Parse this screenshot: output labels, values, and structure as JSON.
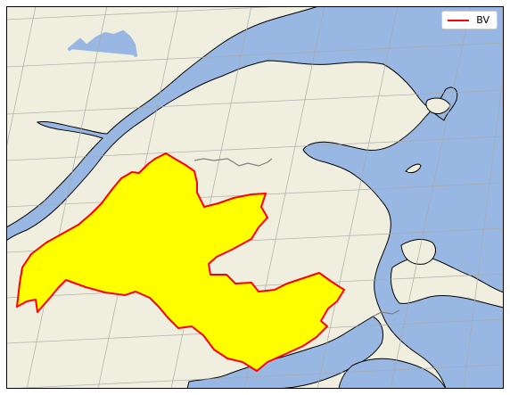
{
  "map": {
    "colors": {
      "land": "#f0efdf",
      "water": "#98b8e3",
      "coast": "#000000",
      "border": "#7f7f7f",
      "grid": "#a9a9a9",
      "region_fill": "#ffff00",
      "region_stroke": "#ff0000"
    },
    "gridlines": "on",
    "legend": {
      "position": "top-right",
      "entries": [
        {
          "label": "BV",
          "color": "#ff0000",
          "type": "line"
        }
      ]
    }
  }
}
